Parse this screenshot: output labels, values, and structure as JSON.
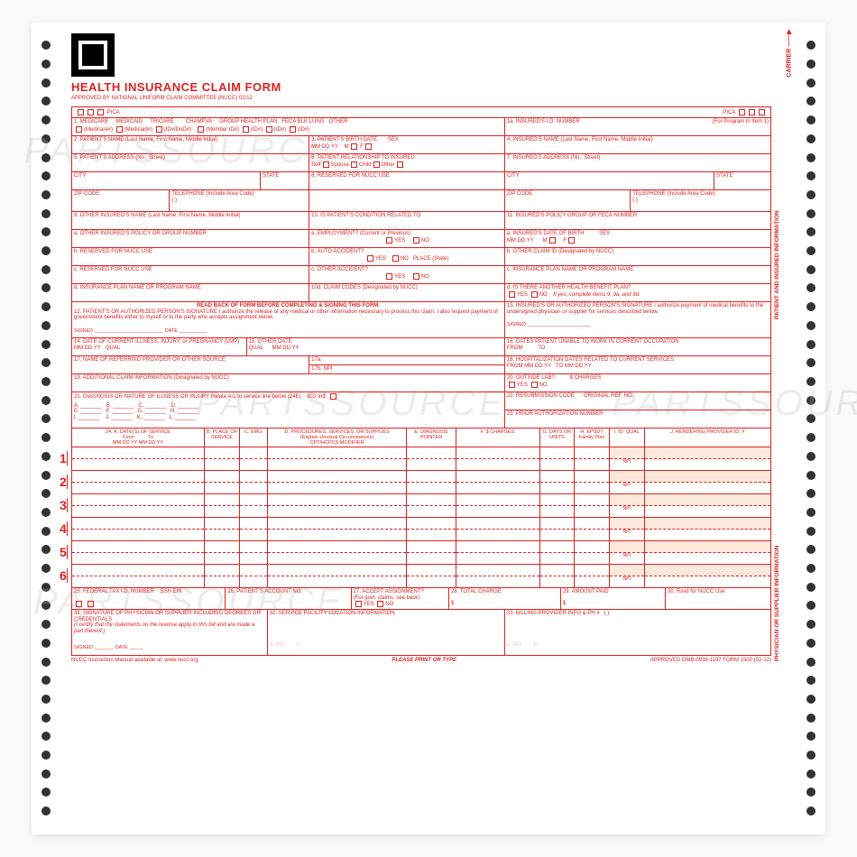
{
  "title": "HEALTH INSURANCE CLAIM FORM",
  "subtitle": "APPROVED BY NATIONAL UNIFORM CLAIM COMMITTEE (NUCC) 02/12",
  "carrier": "CARRIER ——▶",
  "pica": "PICA",
  "side1": "PATIENT AND INSURED INFORMATION",
  "side2": "PHYSICIAN OR SUPPLIER INFORMATION",
  "f1": {
    "hdr": "1.",
    "opts": [
      "MEDICARE",
      "MEDICAID",
      "TRICARE",
      "CHAMPVA",
      "GROUP HEALTH PLAN",
      "FECA BLK LUNG",
      "OTHER"
    ],
    "subs": [
      "(Medicare#)",
      "(Medicaid#)",
      "(ID#/DoD#)",
      "(Member ID#)",
      "(ID#)",
      "(ID#)",
      "(ID#)"
    ]
  },
  "f1a": "1a. INSURED'S I.D. NUMBER",
  "f1a2": "(For Program in Item 1)",
  "f2": "2. PATIENT'S NAME (Last Name, First Name, Middle Initial)",
  "f3": "3. PATIENT'S BIRTH DATE",
  "f3b": "SEX",
  "mdy": "MM   DD   YY",
  "mf": "M     F",
  "f4": "4. INSURED'S NAME (Last Name, First Name, Middle Initial)",
  "f5": "5. PATIENT'S ADDRESS (No., Street)",
  "f6": "6. PATIENT RELATIONSHIP TO INSURED",
  "f6opts": "Self    Spouse    Child    Other",
  "f7": "7. INSURED'S ADDRESS (No., Street)",
  "city": "CITY",
  "state": "STATE",
  "zip": "ZIP CODE",
  "tel": "TELEPHONE (Include Area Code)",
  "paren": "(        )",
  "f8": "8. RESERVED FOR NUCC USE",
  "f9": "9. OTHER INSURED'S NAME (Last Name, First Name, Middle Initial)",
  "f9a": "a. OTHER INSURED'S POLICY OR GROUP NUMBER",
  "f9b": "b. RESERVED FOR NUCC USE",
  "f9c": "c. RESERVED FOR NUCC USE",
  "f9d": "d. INSURANCE PLAN NAME OR PROGRAM NAME",
  "f10": "10. IS PATIENT'S CONDITION RELATED TO:",
  "f10a": "a. EMPLOYMENT? (Current or Previous)",
  "f10b": "b. AUTO ACCIDENT?",
  "f10c": "c. OTHER ACCIDENT?",
  "f10d": "10d. CLAIM CODES (Designated by NUCC)",
  "yes": "YES",
  "no": "NO",
  "place": "PLACE (State)",
  "f11": "11. INSURED'S POLICY GROUP OR FECA NUMBER",
  "f11a": "a. INSURED'S DATE OF BIRTH",
  "f11b": "b. OTHER CLAIM ID (Designated by NUCC)",
  "f11c": "c. INSURANCE PLAN NAME OR PROGRAM NAME",
  "f11d": "d. IS THERE ANOTHER HEALTH BENEFIT PLAN?",
  "f11d2": "If yes, complete items 9, 9a, and 9d.",
  "readback": "READ BACK OF FORM BEFORE COMPLETING & SIGNING THIS FORM.",
  "f12": "12. PATIENT'S OR AUTHORIZED PERSON'S SIGNATURE I authorize the release of any medical or other information necessary to process this claim. I also request payment of government benefits either to myself or to the party who accepts assignment below.",
  "f13": "13. INSURED'S OR AUTHORIZED PERSON'S SIGNATURE I authorize payment of medical benefits to the undersigned physician or supplier for services described below.",
  "signed": "SIGNED",
  "date": "DATE",
  "f14": "14. DATE OF CURRENT ILLNESS, INJURY, or PREGNANCY (LMP)",
  "qual": "QUAL",
  "f15": "15. OTHER DATE",
  "f16": "16. DATES PATIENT UNABLE TO WORK IN CURRENT OCCUPATION",
  "from": "FROM",
  "to": "TO",
  "f17": "17. NAME OF REFERRING PROVIDER OR OTHER SOURCE",
  "f17a": "17a.",
  "f17b": "17b. NPI",
  "f18": "18. HOSPITALIZATION DATES RELATED TO CURRENT SERVICES",
  "f19": "19. ADDITIONAL CLAIM INFORMATION (Designated by NUCC)",
  "f20": "20. OUTSIDE LAB?",
  "f20b": "$ CHARGES",
  "f21": "21. DIAGNOSIS OR NATURE OF ILLNESS OR INJURY  Relate A-L to service line below (24E)",
  "icd": "ICD Ind.",
  "diag": [
    "A.",
    "B.",
    "C.",
    "D.",
    "E.",
    "F.",
    "G.",
    "H.",
    "I.",
    "J.",
    "K.",
    "L."
  ],
  "f22": "22. RESUBMISSION CODE",
  "f22b": "ORIGINAL REF. NO.",
  "f23": "23. PRIOR AUTHORIZATION NUMBER",
  "s24": {
    "a": "24. A.    DATE(S) OF SERVICE",
    "from": "From",
    "to": "To",
    "mmddyy": "MM   DD   YY   MM   DD   YY",
    "b": "B. PLACE OF SERVICE",
    "c": "C. EMG",
    "d": "D. PROCEDURES, SERVICES, OR SUPPLIES",
    "d2": "(Explain Unusual Circumstances)",
    "d3": "CPT/HCPCS       MODIFIER",
    "e": "E. DIAGNOSIS POINTER",
    "f": "F. $ CHARGES",
    "g": "G. DAYS OR UNITS",
    "h": "H. EPSDT Family Plan",
    "i": "I. ID. QUAL",
    "j": "J. RENDERING PROVIDER ID. #"
  },
  "npi": "NPI",
  "f25": "25. FEDERAL TAX I.D. NUMBER",
  "ssn": "SSN  EIN",
  "f26": "26. PATIENT'S ACCOUNT NO.",
  "f27": "27. ACCEPT ASSIGNMENT?",
  "f27b": "(For govt. claims, see back)",
  "f28": "28. TOTAL CHARGE",
  "f29": "29. AMOUNT PAID",
  "f30": "30. Rsvd for NUCC Use",
  "dollar": "$",
  "f31": "31. SIGNATURE OF PHYSICIAN OR SUPPLIER INCLUDING DEGREES OR CREDENTIALS",
  "f31b": "(I certify that the statements on the reverse apply to this bill and are made a part thereof.)",
  "f32": "32. SERVICE FACILITY LOCATION INFORMATION",
  "f33": "33. BILLING PROVIDER INFO & PH #",
  "foot_l": "NUCC Instruction Manual available at: www.nucc.org",
  "foot_c": "PLEASE PRINT OR TYPE",
  "foot_r": "APPROVED OMB-0938-1197 FORM 1500 (02-12)",
  "watermark": "PARTSSOURCE"
}
